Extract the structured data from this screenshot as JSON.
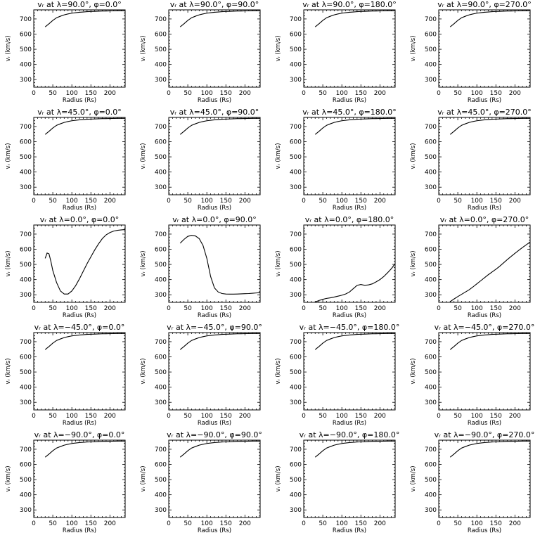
{
  "chart_data": [
    {
      "type": "line",
      "title": "vᵣ at λ=90.0°, φ=0.0°",
      "xlabel": "Radius (Rs)",
      "ylabel": "vᵣ (km/s)",
      "xlim": [
        0,
        240
      ],
      "ylim": [
        250,
        760
      ],
      "x": [
        30,
        40,
        50,
        60,
        70,
        80,
        90,
        100,
        110,
        120,
        130,
        140,
        150,
        160,
        170,
        180,
        190,
        200,
        210,
        220,
        230,
        240
      ],
      "y": [
        648,
        668,
        690,
        708,
        718,
        727,
        733,
        738,
        741,
        744,
        746,
        748,
        749,
        750,
        751,
        752,
        752,
        753,
        753,
        754,
        754,
        754
      ]
    },
    {
      "type": "line",
      "title": "vᵣ at λ=90.0°, φ=90.0°",
      "xlabel": "Radius (Rs)",
      "ylabel": "vᵣ (km/s)",
      "xlim": [
        0,
        240
      ],
      "ylim": [
        250,
        760
      ],
      "x": [
        30,
        40,
        50,
        60,
        70,
        80,
        90,
        100,
        110,
        120,
        130,
        140,
        150,
        160,
        170,
        180,
        190,
        200,
        210,
        220,
        230,
        240
      ],
      "y": [
        648,
        668,
        690,
        708,
        718,
        727,
        733,
        738,
        741,
        744,
        746,
        748,
        749,
        750,
        751,
        752,
        752,
        753,
        753,
        754,
        754,
        754
      ]
    },
    {
      "type": "line",
      "title": "vᵣ at λ=90.0°, φ=180.0°",
      "xlabel": "Radius (Rs)",
      "ylabel": "vᵣ (km/s)",
      "xlim": [
        0,
        240
      ],
      "ylim": [
        250,
        760
      ],
      "x": [
        30,
        40,
        50,
        60,
        70,
        80,
        90,
        100,
        110,
        120,
        130,
        140,
        150,
        160,
        170,
        180,
        190,
        200,
        210,
        220,
        230,
        240
      ],
      "y": [
        648,
        668,
        690,
        708,
        718,
        727,
        733,
        738,
        741,
        744,
        746,
        748,
        749,
        750,
        751,
        752,
        752,
        753,
        753,
        754,
        754,
        754
      ]
    },
    {
      "type": "line",
      "title": "vᵣ at λ=90.0°, φ=270.0°",
      "xlabel": "Radius (Rs)",
      "ylabel": "vᵣ (km/s)",
      "xlim": [
        0,
        240
      ],
      "ylim": [
        250,
        760
      ],
      "x": [
        30,
        40,
        50,
        60,
        70,
        80,
        90,
        100,
        110,
        120,
        130,
        140,
        150,
        160,
        170,
        180,
        190,
        200,
        210,
        220,
        230,
        240
      ],
      "y": [
        648,
        668,
        690,
        708,
        718,
        727,
        733,
        738,
        741,
        744,
        746,
        748,
        749,
        750,
        751,
        752,
        752,
        753,
        753,
        754,
        754,
        754
      ]
    },
    {
      "type": "line",
      "title": "vᵣ at λ=45.0°, φ=0.0°",
      "xlabel": "Radius (Rs)",
      "ylabel": "vᵣ (km/s)",
      "xlim": [
        0,
        240
      ],
      "ylim": [
        250,
        760
      ],
      "x": [
        30,
        40,
        50,
        60,
        70,
        80,
        90,
        100,
        110,
        120,
        130,
        140,
        150,
        160,
        170,
        180,
        190,
        200,
        210,
        220,
        230,
        240
      ],
      "y": [
        648,
        668,
        690,
        708,
        718,
        727,
        733,
        738,
        741,
        744,
        746,
        748,
        749,
        750,
        751,
        752,
        752,
        753,
        753,
        754,
        754,
        754
      ]
    },
    {
      "type": "line",
      "title": "vᵣ at λ=45.0°, φ=90.0°",
      "xlabel": "Radius (Rs)",
      "ylabel": "vᵣ (km/s)",
      "xlim": [
        0,
        240
      ],
      "ylim": [
        250,
        760
      ],
      "x": [
        30,
        40,
        50,
        60,
        70,
        80,
        90,
        100,
        110,
        120,
        130,
        140,
        150,
        160,
        170,
        180,
        190,
        200,
        210,
        220,
        230,
        240
      ],
      "y": [
        648,
        668,
        690,
        708,
        718,
        727,
        733,
        738,
        741,
        744,
        746,
        748,
        749,
        750,
        751,
        752,
        752,
        753,
        753,
        754,
        754,
        754
      ]
    },
    {
      "type": "line",
      "title": "vᵣ at λ=45.0°, φ=180.0°",
      "xlabel": "Radius (Rs)",
      "ylabel": "vᵣ (km/s)",
      "xlim": [
        0,
        240
      ],
      "ylim": [
        250,
        760
      ],
      "x": [
        30,
        40,
        50,
        60,
        70,
        80,
        90,
        100,
        110,
        120,
        130,
        140,
        150,
        160,
        170,
        180,
        190,
        200,
        210,
        220,
        230,
        240
      ],
      "y": [
        648,
        668,
        690,
        708,
        718,
        727,
        733,
        738,
        741,
        744,
        746,
        748,
        749,
        750,
        751,
        752,
        752,
        753,
        753,
        754,
        754,
        754
      ]
    },
    {
      "type": "line",
      "title": "vᵣ at λ=45.0°, φ=270.0°",
      "xlabel": "Radius (Rs)",
      "ylabel": "vᵣ (km/s)",
      "xlim": [
        0,
        240
      ],
      "ylim": [
        250,
        760
      ],
      "x": [
        30,
        40,
        50,
        60,
        70,
        80,
        90,
        100,
        110,
        120,
        130,
        140,
        150,
        160,
        170,
        180,
        190,
        200,
        210,
        220,
        230,
        240
      ],
      "y": [
        648,
        668,
        690,
        708,
        718,
        727,
        733,
        738,
        741,
        744,
        746,
        748,
        749,
        750,
        751,
        752,
        752,
        753,
        753,
        754,
        754,
        754
      ]
    },
    {
      "type": "line",
      "title": "vᵣ at λ=0.0°, φ=0.0°",
      "xlabel": "Radius (Rs)",
      "ylabel": "vᵣ (km/s)",
      "xlim": [
        0,
        240
      ],
      "ylim": [
        250,
        760
      ],
      "x": [
        30,
        35,
        40,
        45,
        50,
        60,
        70,
        80,
        90,
        100,
        110,
        120,
        130,
        140,
        150,
        160,
        170,
        180,
        190,
        200,
        210,
        220,
        230,
        240
      ],
      "y": [
        540,
        575,
        570,
        520,
        460,
        380,
        325,
        305,
        305,
        325,
        360,
        405,
        455,
        505,
        550,
        595,
        635,
        670,
        695,
        710,
        720,
        725,
        728,
        730
      ]
    },
    {
      "type": "line",
      "title": "vᵣ at λ=0.0°, φ=90.0°",
      "xlabel": "Radius (Rs)",
      "ylabel": "vᵣ (km/s)",
      "xlim": [
        0,
        240
      ],
      "ylim": [
        250,
        760
      ],
      "x": [
        30,
        40,
        50,
        60,
        70,
        80,
        90,
        100,
        110,
        120,
        130,
        140,
        150,
        160,
        170,
        180,
        190,
        200,
        210,
        220,
        230,
        240
      ],
      "y": [
        640,
        665,
        685,
        692,
        688,
        670,
        625,
        540,
        420,
        345,
        318,
        308,
        305,
        304,
        304,
        305,
        306,
        307,
        308,
        310,
        312,
        314
      ]
    },
    {
      "type": "line",
      "title": "vᵣ at λ=0.0°, φ=180.0°",
      "xlabel": "Radius (Rs)",
      "ylabel": "vᵣ (km/s)",
      "xlim": [
        0,
        240
      ],
      "ylim": [
        250,
        760
      ],
      "x": [
        30,
        40,
        50,
        60,
        70,
        80,
        90,
        100,
        110,
        120,
        130,
        140,
        150,
        160,
        170,
        180,
        190,
        200,
        210,
        220,
        230,
        240
      ],
      "y": [
        252,
        262,
        270,
        276,
        280,
        285,
        291,
        297,
        305,
        318,
        340,
        362,
        368,
        362,
        365,
        372,
        385,
        400,
        420,
        445,
        472,
        505
      ]
    },
    {
      "type": "line",
      "title": "vᵣ at λ=0.0°, φ=270.0°",
      "xlabel": "Radius (Rs)",
      "ylabel": "vᵣ (km/s)",
      "xlim": [
        0,
        240
      ],
      "ylim": [
        250,
        760
      ],
      "x": [
        30,
        40,
        50,
        60,
        70,
        80,
        90,
        100,
        110,
        120,
        130,
        140,
        150,
        160,
        170,
        180,
        190,
        200,
        210,
        220,
        230,
        240
      ],
      "y": [
        255,
        272,
        288,
        303,
        318,
        333,
        352,
        372,
        392,
        412,
        432,
        450,
        468,
        488,
        510,
        532,
        553,
        573,
        593,
        612,
        630,
        648
      ]
    },
    {
      "type": "line",
      "title": "vᵣ at λ=−45.0°, φ=0.0°",
      "xlabel": "Radius (Rs)",
      "ylabel": "vᵣ (km/s)",
      "xlim": [
        0,
        240
      ],
      "ylim": [
        250,
        760
      ],
      "x": [
        30,
        40,
        50,
        60,
        70,
        80,
        90,
        100,
        110,
        120,
        130,
        140,
        150,
        160,
        170,
        180,
        190,
        200,
        210,
        220,
        230,
        240
      ],
      "y": [
        648,
        668,
        690,
        708,
        718,
        727,
        733,
        738,
        741,
        744,
        746,
        748,
        749,
        750,
        751,
        752,
        752,
        753,
        753,
        754,
        754,
        754
      ]
    },
    {
      "type": "line",
      "title": "vᵣ at λ=−45.0°, φ=90.0°",
      "xlabel": "Radius (Rs)",
      "ylabel": "vᵣ (km/s)",
      "xlim": [
        0,
        240
      ],
      "ylim": [
        250,
        760
      ],
      "x": [
        30,
        40,
        50,
        60,
        70,
        80,
        90,
        100,
        110,
        120,
        130,
        140,
        150,
        160,
        170,
        180,
        190,
        200,
        210,
        220,
        230,
        240
      ],
      "y": [
        648,
        668,
        690,
        708,
        718,
        727,
        733,
        738,
        741,
        744,
        746,
        748,
        749,
        750,
        751,
        752,
        752,
        753,
        753,
        754,
        754,
        754
      ]
    },
    {
      "type": "line",
      "title": "vᵣ at λ=−45.0°, φ=180.0°",
      "xlabel": "Radius (Rs)",
      "ylabel": "vᵣ (km/s)",
      "xlim": [
        0,
        240
      ],
      "ylim": [
        250,
        760
      ],
      "x": [
        30,
        40,
        50,
        60,
        70,
        80,
        90,
        100,
        110,
        120,
        130,
        140,
        150,
        160,
        170,
        180,
        190,
        200,
        210,
        220,
        230,
        240
      ],
      "y": [
        648,
        668,
        690,
        708,
        718,
        727,
        733,
        738,
        741,
        744,
        746,
        748,
        749,
        750,
        751,
        752,
        752,
        753,
        753,
        754,
        754,
        754
      ]
    },
    {
      "type": "line",
      "title": "vᵣ at λ=−45.0°, φ=270.0°",
      "xlabel": "Radius (Rs)",
      "ylabel": "vᵣ (km/s)",
      "xlim": [
        0,
        240
      ],
      "ylim": [
        250,
        760
      ],
      "x": [
        30,
        40,
        50,
        60,
        70,
        80,
        90,
        100,
        110,
        120,
        130,
        140,
        150,
        160,
        170,
        180,
        190,
        200,
        210,
        220,
        230,
        240
      ],
      "y": [
        648,
        668,
        690,
        708,
        718,
        727,
        733,
        738,
        741,
        744,
        746,
        748,
        749,
        750,
        751,
        752,
        752,
        753,
        753,
        754,
        754,
        754
      ]
    },
    {
      "type": "line",
      "title": "vᵣ at λ=−90.0°, φ=0.0°",
      "xlabel": "Radius (Rs)",
      "ylabel": "vᵣ (km/s)",
      "xlim": [
        0,
        240
      ],
      "ylim": [
        250,
        760
      ],
      "x": [
        30,
        40,
        50,
        60,
        70,
        80,
        90,
        100,
        110,
        120,
        130,
        140,
        150,
        160,
        170,
        180,
        190,
        200,
        210,
        220,
        230,
        240
      ],
      "y": [
        648,
        668,
        690,
        708,
        718,
        727,
        733,
        738,
        741,
        744,
        746,
        748,
        749,
        750,
        751,
        752,
        752,
        753,
        753,
        754,
        754,
        754
      ]
    },
    {
      "type": "line",
      "title": "vᵣ at λ=−90.0°, φ=90.0°",
      "xlabel": "Radius (Rs)",
      "ylabel": "vᵣ (km/s)",
      "xlim": [
        0,
        240
      ],
      "ylim": [
        250,
        760
      ],
      "x": [
        30,
        40,
        50,
        60,
        70,
        80,
        90,
        100,
        110,
        120,
        130,
        140,
        150,
        160,
        170,
        180,
        190,
        200,
        210,
        220,
        230,
        240
      ],
      "y": [
        648,
        668,
        690,
        708,
        718,
        727,
        733,
        738,
        741,
        744,
        746,
        748,
        749,
        750,
        751,
        752,
        752,
        753,
        753,
        754,
        754,
        754
      ]
    },
    {
      "type": "line",
      "title": "vᵣ at λ=−90.0°, φ=180.0°",
      "xlabel": "Radius (Rs)",
      "ylabel": "vᵣ (km/s)",
      "xlim": [
        0,
        240
      ],
      "ylim": [
        250,
        760
      ],
      "x": [
        30,
        40,
        50,
        60,
        70,
        80,
        90,
        100,
        110,
        120,
        130,
        140,
        150,
        160,
        170,
        180,
        190,
        200,
        210,
        220,
        230,
        240
      ],
      "y": [
        648,
        668,
        690,
        708,
        718,
        727,
        733,
        738,
        741,
        744,
        746,
        748,
        749,
        750,
        751,
        752,
        752,
        753,
        753,
        754,
        754,
        754
      ]
    },
    {
      "type": "line",
      "title": "vᵣ at λ=−90.0°, φ=270.0°",
      "xlabel": "Radius (Rs)",
      "ylabel": "vᵣ (km/s)",
      "xlim": [
        0,
        240
      ],
      "ylim": [
        250,
        760
      ],
      "x": [
        30,
        40,
        50,
        60,
        70,
        80,
        90,
        100,
        110,
        120,
        130,
        140,
        150,
        160,
        170,
        180,
        190,
        200,
        210,
        220,
        230,
        240
      ],
      "y": [
        648,
        668,
        690,
        708,
        718,
        727,
        733,
        738,
        741,
        744,
        746,
        748,
        749,
        750,
        751,
        752,
        752,
        753,
        753,
        754,
        754,
        754
      ]
    }
  ],
  "axes": {
    "x_ticks": [
      "0",
      "50",
      "100",
      "150",
      "200"
    ],
    "y_ticks": [
      "300",
      "400",
      "500",
      "600",
      "700"
    ]
  }
}
